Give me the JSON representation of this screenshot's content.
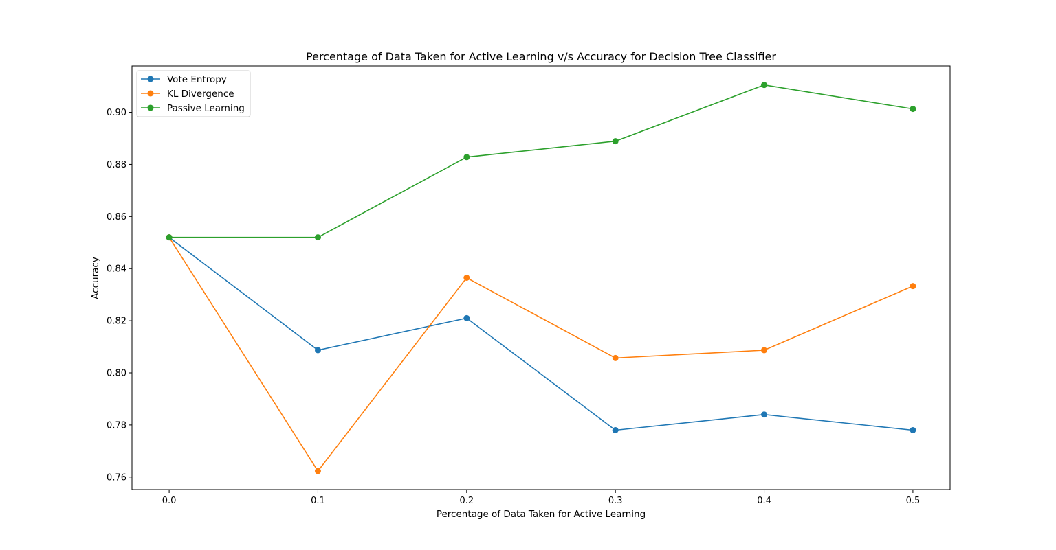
{
  "chart_data": {
    "type": "line",
    "title": "Percentage of Data Taken for Active Learning v/s Accuracy for Decision Tree Classifier",
    "xlabel": "Percentage of Data Taken for Active Learning",
    "ylabel": "Accuracy",
    "x": [
      0.0,
      0.1,
      0.2,
      0.3,
      0.4,
      0.5
    ],
    "x_ticks": [
      "0.0",
      "0.1",
      "0.2",
      "0.3",
      "0.4",
      "0.5"
    ],
    "y_ticks": [
      "0.76",
      "0.78",
      "0.80",
      "0.82",
      "0.84",
      "0.86",
      "0.88",
      "0.90"
    ],
    "xlim": [
      -0.025,
      0.525
    ],
    "ylim": [
      0.7552,
      0.9178
    ],
    "grid": false,
    "legend_position": "top-left",
    "series": [
      {
        "name": "Vote Entropy",
        "color": "#1f77b4",
        "values": [
          0.852,
          0.8087,
          0.821,
          0.778,
          0.784,
          0.778
        ]
      },
      {
        "name": "KL Divergence",
        "color": "#ff7f0e",
        "values": [
          0.852,
          0.7623,
          0.8365,
          0.8057,
          0.8087,
          0.8333
        ]
      },
      {
        "name": "Passive Learning",
        "color": "#2ca02c",
        "values": [
          0.852,
          0.852,
          0.8828,
          0.8889,
          0.9105,
          0.9013
        ]
      }
    ]
  }
}
